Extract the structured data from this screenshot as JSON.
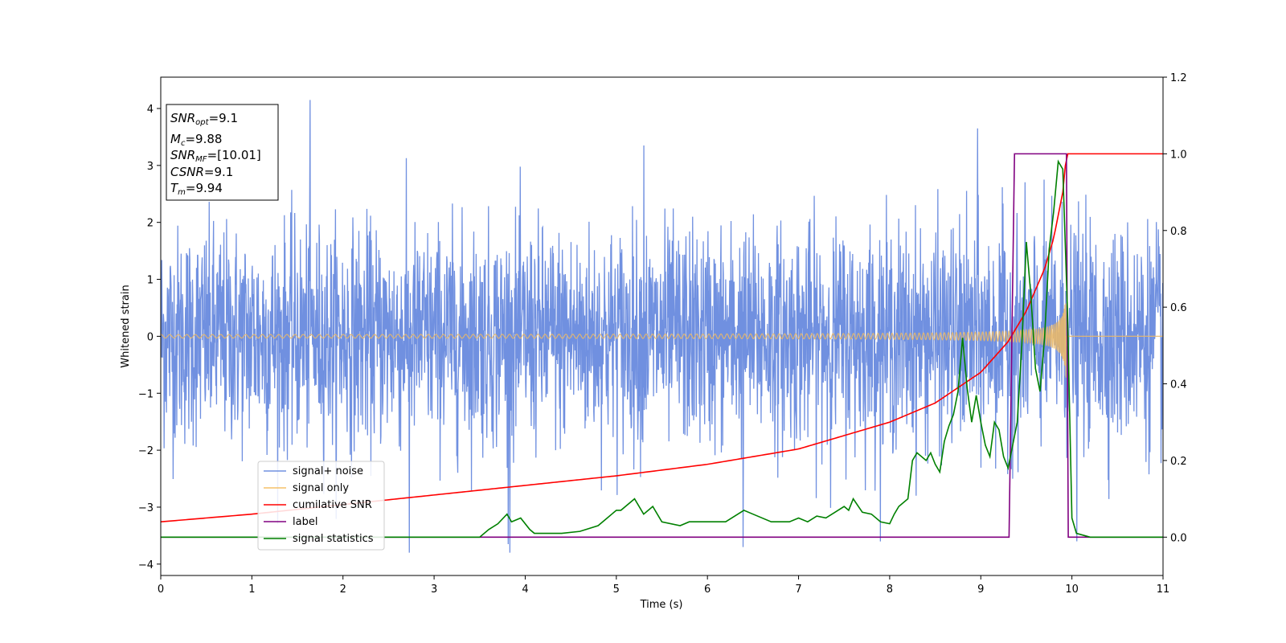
{
  "chart_data": {
    "type": "line",
    "xlabel": "Time (s)",
    "ylabel": "Whitened strain",
    "xlim": [
      0,
      11
    ],
    "ylim": [
      -4.2,
      4.55
    ],
    "y2lim": [
      -0.1,
      1.2
    ],
    "x_ticks": [
      "0",
      "1",
      "2",
      "3",
      "4",
      "5",
      "6",
      "7",
      "8",
      "9",
      "10",
      "11"
    ],
    "y_ticks": [
      "4",
      "3",
      "2",
      "1",
      "0",
      "−1",
      "−2",
      "−3",
      "−4"
    ],
    "y2_ticks": [
      "1.2",
      "1.0",
      "0.8",
      "0.6",
      "0.4",
      "0.2",
      "0.0"
    ],
    "grid": false,
    "legend_position": "lower-left",
    "series": [
      {
        "name": "signal+ noise",
        "axis": "left",
        "color": "#7090e0",
        "kind": "noise",
        "std": 0.95,
        "peak_values": [
          4.15,
          3.35,
          3.65,
          -3.8,
          -3.7,
          -3.6,
          -3.65
        ]
      },
      {
        "name": "signal only",
        "axis": "left",
        "color": "#f5c068",
        "kind": "chirp",
        "merger_time": 9.94,
        "peak_amplitude": 0.85
      },
      {
        "name": "cumilative SNR",
        "axis": "right",
        "color": "#ff0000",
        "x": [
          0,
          1,
          2,
          3,
          4,
          5,
          6,
          7,
          8,
          8.5,
          9,
          9.3,
          9.5,
          9.7,
          9.8,
          9.9,
          9.94,
          10,
          11
        ],
        "values": [
          0.04,
          0.06,
          0.085,
          0.11,
          0.135,
          0.16,
          0.19,
          0.23,
          0.3,
          0.35,
          0.43,
          0.51,
          0.59,
          0.7,
          0.78,
          0.9,
          1.0,
          1.0,
          1.0
        ]
      },
      {
        "name": "label",
        "axis": "right",
        "color": "#800080",
        "x": [
          0,
          9.31,
          9.37,
          9.94,
          9.96,
          11
        ],
        "values": [
          0.0,
          0.0,
          1.0,
          1.0,
          0.0,
          0.0
        ]
      },
      {
        "name": "signal statistics",
        "axis": "right",
        "color": "#008000",
        "x": [
          0,
          0.5,
          1,
          1.5,
          2,
          2.5,
          3,
          3.5,
          3.6,
          3.7,
          3.8,
          3.85,
          3.95,
          4.05,
          4.1,
          4.2,
          4.4,
          4.6,
          4.8,
          4.9,
          5.0,
          5.05,
          5.2,
          5.3,
          5.4,
          5.5,
          5.7,
          5.8,
          6.0,
          6.2,
          6.4,
          6.5,
          6.7,
          6.9,
          7.0,
          7.1,
          7.2,
          7.3,
          7.4,
          7.5,
          7.55,
          7.6,
          7.7,
          7.8,
          7.9,
          8.0,
          8.05,
          8.1,
          8.2,
          8.25,
          8.3,
          8.4,
          8.45,
          8.5,
          8.55,
          8.6,
          8.65,
          8.7,
          8.75,
          8.8,
          8.85,
          8.9,
          8.95,
          9.0,
          9.05,
          9.1,
          9.15,
          9.2,
          9.25,
          9.3,
          9.35,
          9.4,
          9.45,
          9.5,
          9.55,
          9.6,
          9.65,
          9.7,
          9.75,
          9.8,
          9.85,
          9.9,
          9.95,
          10.0,
          10.05,
          10.2,
          11
        ],
        "values": [
          0.0,
          0.0,
          0.0,
          0.0,
          0.0,
          0.0,
          0.0,
          0.0,
          0.02,
          0.035,
          0.06,
          0.04,
          0.05,
          0.02,
          0.01,
          0.01,
          0.01,
          0.015,
          0.03,
          0.05,
          0.07,
          0.07,
          0.1,
          0.06,
          0.08,
          0.04,
          0.03,
          0.04,
          0.04,
          0.04,
          0.07,
          0.06,
          0.04,
          0.04,
          0.05,
          0.04,
          0.055,
          0.05,
          0.065,
          0.08,
          0.07,
          0.1,
          0.065,
          0.06,
          0.04,
          0.035,
          0.06,
          0.08,
          0.1,
          0.2,
          0.22,
          0.2,
          0.22,
          0.19,
          0.17,
          0.25,
          0.29,
          0.32,
          0.38,
          0.52,
          0.39,
          0.3,
          0.37,
          0.3,
          0.24,
          0.21,
          0.3,
          0.28,
          0.21,
          0.18,
          0.24,
          0.3,
          0.5,
          0.77,
          0.63,
          0.44,
          0.38,
          0.52,
          0.75,
          0.85,
          0.98,
          0.96,
          0.6,
          0.05,
          0.01,
          0.0,
          0.0
        ]
      }
    ],
    "info_box": {
      "snr_opt": "=9.1",
      "mc": "=9.88",
      "snr_mf": "=[10.01]",
      "csnr": "=9.1",
      "tm": "=9.94"
    }
  }
}
